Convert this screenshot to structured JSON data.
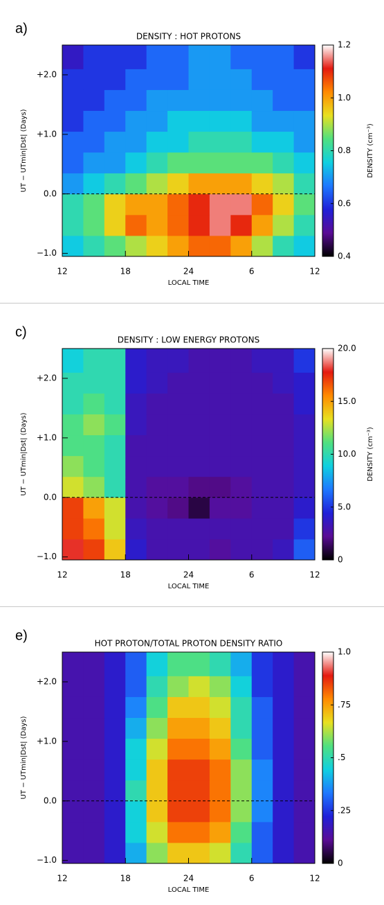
{
  "chart_data": [
    {
      "type": "heatmap",
      "panel_label": "a)",
      "title": "DENSITY : HOT PROTONS",
      "xlabel": "LOCAL TIME",
      "ylabel": "UT − UTmin|Dst| (Days)",
      "colorbar_label": "DENSITY (cm⁻³)",
      "xlim": [
        12,
        36
      ],
      "xticks": [
        12,
        18,
        24,
        {
          "value": 30,
          "label": "6"
        },
        {
          "value": 36,
          "label": "12"
        }
      ],
      "ylim": [
        -1.05,
        2.5
      ],
      "yticks": [
        {
          "value": -1,
          "label": "−1.0"
        },
        {
          "value": 0,
          "label": "0.0"
        },
        {
          "value": 1,
          "label": "+1.0"
        },
        {
          "value": 2,
          "label": "+2.0"
        }
      ],
      "clim": [
        0.4,
        1.2
      ],
      "cticks": [
        0.4,
        0.6,
        0.8,
        {
          "value": 1,
          "label": "1.0"
        },
        1.2
      ],
      "hline": 0,
      "colormap": [
        "#000000",
        "#5a0c96",
        "#2020d8",
        "#1e78ff",
        "#10d0e0",
        "#50e080",
        "#e8e020",
        "#ff8a00",
        "#e41a10",
        "#ffffff"
      ],
      "x_bins": [
        12,
        14,
        16,
        18,
        20,
        22,
        24,
        26,
        28,
        30,
        32,
        34,
        36
      ],
      "y_bins": [
        -1.05,
        -0.7,
        -0.35,
        0,
        0.35,
        0.7,
        1.05,
        1.4,
        1.75,
        2.1,
        2.5
      ],
      "z": [
        [
          0.75,
          0.8,
          0.85,
          0.9,
          0.95,
          1.0,
          1.05,
          1.05,
          1.0,
          0.9,
          0.8,
          0.75
        ],
        [
          0.8,
          0.85,
          0.95,
          1.05,
          1.0,
          1.05,
          1.1,
          1.15,
          1.1,
          1.0,
          0.9,
          0.8
        ],
        [
          0.8,
          0.85,
          0.95,
          1.0,
          1.0,
          1.05,
          1.1,
          1.15,
          1.15,
          1.05,
          0.95,
          0.85
        ],
        [
          0.7,
          0.75,
          0.8,
          0.85,
          0.9,
          0.95,
          1.0,
          1.0,
          1.0,
          0.95,
          0.9,
          0.8
        ],
        [
          0.65,
          0.7,
          0.7,
          0.75,
          0.8,
          0.85,
          0.85,
          0.85,
          0.85,
          0.85,
          0.8,
          0.75
        ],
        [
          0.65,
          0.65,
          0.7,
          0.7,
          0.75,
          0.75,
          0.8,
          0.8,
          0.8,
          0.75,
          0.75,
          0.7
        ],
        [
          0.6,
          0.65,
          0.65,
          0.7,
          0.7,
          0.75,
          0.75,
          0.75,
          0.75,
          0.7,
          0.7,
          0.7
        ],
        [
          0.6,
          0.6,
          0.65,
          0.65,
          0.7,
          0.7,
          0.7,
          0.7,
          0.7,
          0.7,
          0.65,
          0.65
        ],
        [
          0.6,
          0.6,
          0.6,
          0.65,
          0.65,
          0.65,
          0.7,
          0.7,
          0.7,
          0.65,
          0.65,
          0.65
        ],
        [
          0.55,
          0.6,
          0.6,
          0.6,
          0.65,
          0.65,
          0.7,
          0.7,
          0.65,
          0.65,
          0.65,
          0.6
        ]
      ]
    },
    {
      "type": "heatmap",
      "panel_label": "c)",
      "title": "DENSITY : LOW ENERGY PROTONS",
      "xlabel": "LOCAL TIME",
      "ylabel": "UT − UTmin|Dst| (Days)",
      "colorbar_label": "DENSITY (cm⁻³)",
      "xlim": [
        12,
        36
      ],
      "xticks": [
        12,
        18,
        24,
        {
          "value": 30,
          "label": "6"
        },
        {
          "value": 36,
          "label": "12"
        }
      ],
      "ylim": [
        -1.05,
        2.5
      ],
      "yticks": [
        {
          "value": -1,
          "label": "−1.0"
        },
        {
          "value": 0,
          "label": "0.0"
        },
        {
          "value": 1,
          "label": "+1.0"
        },
        {
          "value": 2,
          "label": "+2.0"
        }
      ],
      "clim": [
        0,
        20
      ],
      "cticks": [
        0,
        {
          "value": 5,
          "label": "5.0"
        },
        {
          "value": 10,
          "label": "10.0"
        },
        {
          "value": 15,
          "label": "15.0"
        },
        {
          "value": 20,
          "label": "20.0"
        }
      ],
      "hline": 0,
      "colormap": [
        "#000000",
        "#5a0c96",
        "#2020d8",
        "#1e78ff",
        "#10d0e0",
        "#50e080",
        "#e8e020",
        "#ff8a00",
        "#e41a10",
        "#ffffff"
      ],
      "x_bins": [
        12,
        14,
        16,
        18,
        20,
        22,
        24,
        26,
        28,
        30,
        32,
        34,
        36
      ],
      "y_bins": [
        -1.05,
        -0.7,
        -0.35,
        0,
        0.35,
        0.7,
        1.05,
        1.4,
        1.75,
        2.1,
        2.5
      ],
      "z": [
        [
          18,
          17,
          14,
          4,
          3,
          3,
          3,
          2.5,
          3,
          3,
          3.5,
          6
        ],
        [
          17,
          16,
          13,
          3.5,
          3,
          3,
          3,
          3,
          3,
          3,
          3,
          5
        ],
        [
          17,
          15,
          13,
          3,
          2.5,
          2,
          1,
          2.5,
          2.5,
          3,
          3,
          4
        ],
        [
          13,
          12,
          10,
          3,
          2.5,
          2.5,
          2,
          2,
          2.5,
          3,
          3,
          3.5
        ],
        [
          12,
          11,
          10,
          3,
          3,
          3,
          3,
          3,
          3,
          3,
          3,
          3.5
        ],
        [
          11,
          11,
          10,
          3,
          3,
          3,
          3,
          3,
          3,
          3,
          3,
          3.5
        ],
        [
          11,
          12,
          11,
          3.5,
          3,
          3,
          3,
          3,
          3,
          3,
          3,
          3.5
        ],
        [
          10,
          11,
          10,
          3.5,
          3,
          3,
          3,
          3,
          3,
          3,
          3,
          4
        ],
        [
          10,
          10,
          10,
          4,
          3.5,
          3,
          3,
          3,
          3,
          3,
          3.5,
          4
        ],
        [
          9,
          10,
          10,
          4,
          3.5,
          3.5,
          3,
          3,
          3,
          3.5,
          3.5,
          5
        ]
      ]
    },
    {
      "type": "heatmap",
      "panel_label": "e)",
      "title": "HOT PROTON/TOTAL PROTON DENSITY RATIO",
      "xlabel": "LOCAL TIME",
      "ylabel": "UT − UTmin|Dst| (Days)",
      "xlim": [
        12,
        36
      ],
      "xticks": [
        12,
        18,
        24,
        {
          "value": 30,
          "label": "6"
        },
        {
          "value": 36,
          "label": "12"
        }
      ],
      "ylim": [
        -1.05,
        2.5
      ],
      "yticks": [
        {
          "value": -1,
          "label": "−1.0"
        },
        {
          "value": 0,
          "label": "0.0"
        },
        {
          "value": 1,
          "label": "+1.0"
        },
        {
          "value": 2,
          "label": "+2.0"
        }
      ],
      "clim": [
        0,
        1
      ],
      "cticks": [
        0,
        {
          "value": 0.25,
          "label": ".25"
        },
        {
          "value": 0.5,
          "label": ".5"
        },
        {
          "value": 0.75,
          "label": ".75"
        },
        {
          "value": 1,
          "label": "1.0"
        }
      ],
      "hline": 0,
      "colormap": [
        "#000000",
        "#5a0c96",
        "#2020d8",
        "#1e78ff",
        "#10d0e0",
        "#50e080",
        "#e8e020",
        "#ff8a00",
        "#e41a10",
        "#ffffff"
      ],
      "x_bins": [
        12,
        14,
        16,
        18,
        20,
        22,
        24,
        26,
        28,
        30,
        32,
        34,
        36
      ],
      "y_bins": [
        -1.05,
        -0.7,
        -0.35,
        0,
        0.35,
        0.7,
        1.05,
        1.4,
        1.75,
        2.1,
        2.5
      ],
      "z": [
        [
          0.15,
          0.15,
          0.2,
          0.4,
          0.6,
          0.7,
          0.7,
          0.65,
          0.5,
          0.3,
          0.2,
          0.15
        ],
        [
          0.15,
          0.15,
          0.2,
          0.45,
          0.65,
          0.8,
          0.8,
          0.75,
          0.55,
          0.3,
          0.2,
          0.15
        ],
        [
          0.15,
          0.15,
          0.2,
          0.45,
          0.7,
          0.85,
          0.85,
          0.8,
          0.6,
          0.35,
          0.2,
          0.15
        ],
        [
          0.15,
          0.15,
          0.2,
          0.5,
          0.7,
          0.85,
          0.85,
          0.8,
          0.6,
          0.35,
          0.2,
          0.15
        ],
        [
          0.15,
          0.15,
          0.2,
          0.45,
          0.7,
          0.85,
          0.85,
          0.8,
          0.6,
          0.35,
          0.2,
          0.15
        ],
        [
          0.15,
          0.15,
          0.2,
          0.45,
          0.65,
          0.8,
          0.8,
          0.75,
          0.55,
          0.3,
          0.2,
          0.15
        ],
        [
          0.15,
          0.15,
          0.2,
          0.4,
          0.6,
          0.75,
          0.75,
          0.7,
          0.5,
          0.3,
          0.2,
          0.15
        ],
        [
          0.15,
          0.15,
          0.2,
          0.35,
          0.55,
          0.7,
          0.7,
          0.65,
          0.5,
          0.3,
          0.2,
          0.15
        ],
        [
          0.15,
          0.15,
          0.2,
          0.3,
          0.5,
          0.6,
          0.65,
          0.6,
          0.45,
          0.25,
          0.2,
          0.15
        ],
        [
          0.15,
          0.15,
          0.2,
          0.3,
          0.45,
          0.55,
          0.55,
          0.5,
          0.4,
          0.25,
          0.2,
          0.15
        ]
      ]
    }
  ]
}
